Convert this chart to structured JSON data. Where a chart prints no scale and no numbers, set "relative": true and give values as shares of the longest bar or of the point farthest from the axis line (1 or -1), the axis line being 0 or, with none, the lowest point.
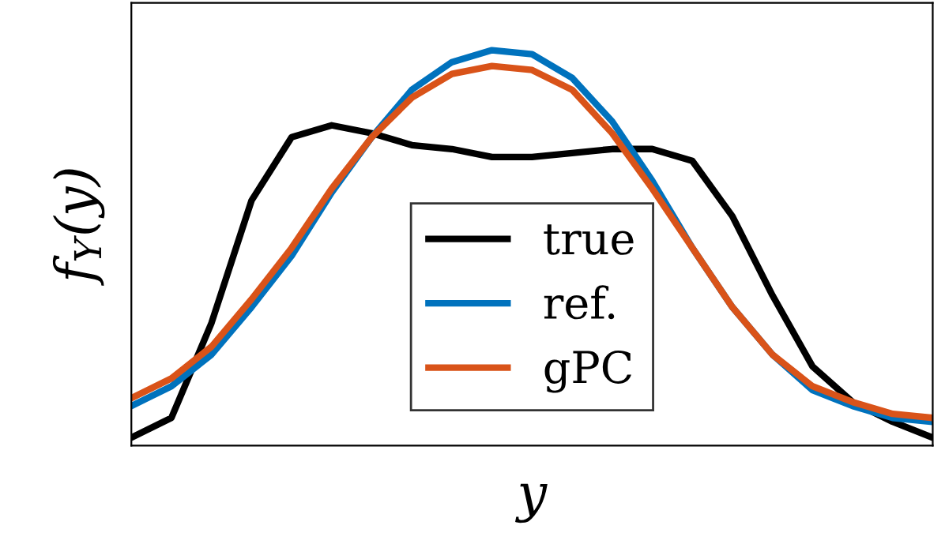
{
  "chart_data": {
    "type": "line",
    "relative": true,
    "xlabel": "y",
    "ylabel": "f$_{Y}$(y)",
    "legend": "bottom",
    "line_style": "solid",
    "marker": "none",
    "tick_labels": false,
    "categories": [
      null,
      null,
      null,
      null,
      null,
      null,
      null,
      null,
      null,
      null,
      null,
      null,
      null,
      null,
      null,
      null,
      null,
      null,
      null,
      null,
      null
    ],
    "series": [
      {
        "name": "true",
        "color": "#000000",
        "values": [
          0.02,
          0.07,
          0.31,
          0.62,
          0.78,
          0.81,
          0.79,
          0.76,
          0.75,
          0.73,
          0.73,
          0.74,
          0.75,
          0.75,
          0.72,
          0.58,
          0.38,
          0.2,
          0.11,
          0.06,
          0.02
        ]
      },
      {
        "name": "ref.",
        "color": "#0072bd",
        "values": [
          0.1,
          0.15,
          0.23,
          0.35,
          0.48,
          0.64,
          0.78,
          0.9,
          0.97,
          1.0,
          0.99,
          0.93,
          0.82,
          0.67,
          0.5,
          0.35,
          0.23,
          0.14,
          0.1,
          0.07,
          0.06
        ]
      },
      {
        "name": "gPC",
        "color": "#d95319",
        "values": [
          0.12,
          0.17,
          0.25,
          0.37,
          0.5,
          0.65,
          0.78,
          0.88,
          0.94,
          0.96,
          0.95,
          0.9,
          0.79,
          0.65,
          0.5,
          0.35,
          0.23,
          0.15,
          0.11,
          0.08,
          0.07
        ]
      }
    ]
  }
}
